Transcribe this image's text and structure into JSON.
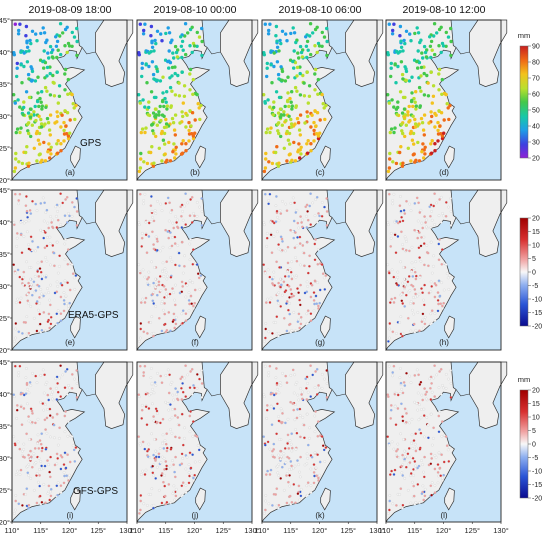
{
  "columns": [
    "2019-08-09 18:00",
    "2019-08-10 00:00",
    "2019-08-10 06:00",
    "2019-08-10 12:00"
  ],
  "rows": [
    {
      "label": "GPS",
      "letters": [
        "(a)",
        "(b)",
        "(c)",
        "(d)"
      ],
      "colorbar": {
        "unit": "mm",
        "ticks": [
          "90",
          "80",
          "70",
          "60",
          "50",
          "40",
          "30",
          "20"
        ]
      }
    },
    {
      "label": "ERA5-GPS",
      "letters": [
        "(e)",
        "(f)",
        "(g)",
        "(h)"
      ],
      "colorbar": {
        "unit": "",
        "ticks": [
          "20",
          "15",
          "10",
          "5",
          "0",
          "-5",
          "-10",
          "-15",
          "-20"
        ]
      }
    },
    {
      "label": "GFS-GPS",
      "letters": [
        "(i)",
        "(j)",
        "(k)",
        "(l)"
      ],
      "colorbar": {
        "unit": "mm",
        "ticks": [
          "20",
          "15",
          "10",
          "5",
          "0",
          "-5",
          "-10",
          "-15",
          "-20"
        ]
      }
    }
  ],
  "lon_ticks": [
    "110°",
    "115°",
    "120°",
    "125°",
    "130°"
  ],
  "lat_ticks": [
    "45°",
    "40°",
    "35°",
    "30°",
    "25°",
    "20°"
  ],
  "colors": {
    "sea": "#c7e3f8",
    "land": "#efefef",
    "coast": "#333333",
    "cbar_abs": [
      "#8f22d6",
      "#3f3fe0",
      "#1f9ee6",
      "#17c8a8",
      "#44c84a",
      "#b9e02e",
      "#f3c21d",
      "#f06b16",
      "#c81f1f"
    ],
    "cbar_diff": [
      "#0b0b8f",
      "#2a55d6",
      "#8fb0f0",
      "#f5f5f5",
      "#f0a0a0",
      "#d83030",
      "#a00000"
    ]
  }
}
